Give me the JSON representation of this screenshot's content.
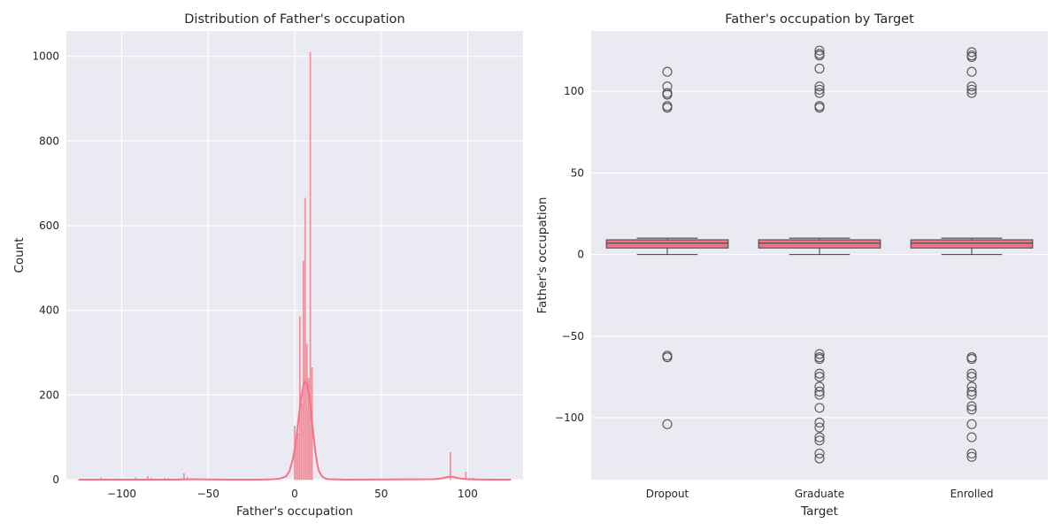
{
  "chart_data": [
    {
      "type": "bar",
      "subtype": "histogram-with-kde",
      "title": "Distribution of Father's occupation",
      "xlabel": "Father's occupation",
      "ylabel": "Count",
      "xlim": [
        -132,
        132
      ],
      "ylim": [
        0,
        1060
      ],
      "xticks": [
        -100,
        -50,
        0,
        50,
        100
      ],
      "yticks": [
        0,
        200,
        400,
        600,
        800,
        1000
      ],
      "grid": true,
      "bar_color": "#f1a3ad",
      "bar_edge_color": "#e07f8e",
      "kde_color": "#f77189",
      "bins": [
        {
          "x": -122,
          "count": 1
        },
        {
          "x": -112,
          "count": 4
        },
        {
          "x": -103,
          "count": 2
        },
        {
          "x": -92,
          "count": 5
        },
        {
          "x": -85,
          "count": 8
        },
        {
          "x": -83,
          "count": 3
        },
        {
          "x": -75,
          "count": 4
        },
        {
          "x": -73,
          "count": 3
        },
        {
          "x": -64,
          "count": 14
        },
        {
          "x": -62,
          "count": 5
        },
        {
          "x": 0,
          "count": 127
        },
        {
          "x": 1,
          "count": 100
        },
        {
          "x": 2,
          "count": 110
        },
        {
          "x": 3,
          "count": 385
        },
        {
          "x": 4,
          "count": 180
        },
        {
          "x": 5,
          "count": 517
        },
        {
          "x": 6,
          "count": 665
        },
        {
          "x": 7,
          "count": 320
        },
        {
          "x": 8,
          "count": 240
        },
        {
          "x": 9,
          "count": 1010
        },
        {
          "x": 10,
          "count": 265
        },
        {
          "x": 90,
          "count": 64
        },
        {
          "x": 99,
          "count": 18
        },
        {
          "x": 101,
          "count": 3
        },
        {
          "x": 103,
          "count": 4
        },
        {
          "x": 112,
          "count": 2
        },
        {
          "x": 114,
          "count": 2
        },
        {
          "x": 122,
          "count": 1
        },
        {
          "x": 124,
          "count": 1
        }
      ],
      "kde": {
        "x": [
          -125,
          -70,
          -60,
          -40,
          -20,
          -12,
          -8,
          -5,
          -3,
          -1,
          0,
          1,
          2,
          3,
          4,
          5,
          6,
          7,
          8,
          9,
          10,
          11,
          12,
          13,
          14,
          16,
          18,
          20,
          30,
          80,
          85,
          88,
          90,
          92,
          95,
          100,
          110,
          125
        ],
        "y": [
          0,
          0,
          1,
          0,
          0,
          1,
          3,
          8,
          20,
          50,
          72,
          100,
          135,
          170,
          200,
          222,
          232,
          228,
          210,
          180,
          140,
          100,
          65,
          38,
          20,
          7,
          2,
          1,
          0,
          1,
          3,
          6,
          7,
          6,
          3,
          1,
          0,
          0
        ]
      }
    },
    {
      "type": "box",
      "title": "Father's occupation by Target",
      "xlabel": "Target",
      "ylabel": "Father's occupation",
      "categories": [
        "Dropout",
        "Graduate",
        "Enrolled"
      ],
      "ylim": [
        -138,
        137
      ],
      "yticks": [
        -100,
        -50,
        0,
        50,
        100
      ],
      "grid": true,
      "box_color": "#f77189",
      "line_color": "#555555",
      "boxes": [
        {
          "category": "Dropout",
          "whisker_low": 0,
          "q1": 4,
          "median": 7,
          "q3": 9,
          "whisker_high": 10,
          "outliers": [
            112,
            103,
            99,
            98,
            91,
            90,
            -62,
            -63,
            -104
          ]
        },
        {
          "category": "Graduate",
          "whisker_low": 0,
          "q1": 4,
          "median": 7,
          "q3": 9,
          "whisker_high": 10,
          "outliers": [
            125,
            123,
            122,
            114,
            103,
            101,
            99,
            91,
            90,
            -61,
            -63,
            -64,
            -73,
            -75,
            -81,
            -84,
            -86,
            -94,
            -103,
            -106,
            -112,
            -114,
            -122,
            -125
          ]
        },
        {
          "category": "Enrolled",
          "whisker_low": 0,
          "q1": 4,
          "median": 7,
          "q3": 9,
          "whisker_high": 10,
          "outliers": [
            124,
            122,
            121,
            112,
            103,
            101,
            99,
            -63,
            -64,
            -73,
            -75,
            -81,
            -84,
            -86,
            -93,
            -95,
            -104,
            -112,
            -122,
            -124
          ]
        }
      ]
    }
  ]
}
